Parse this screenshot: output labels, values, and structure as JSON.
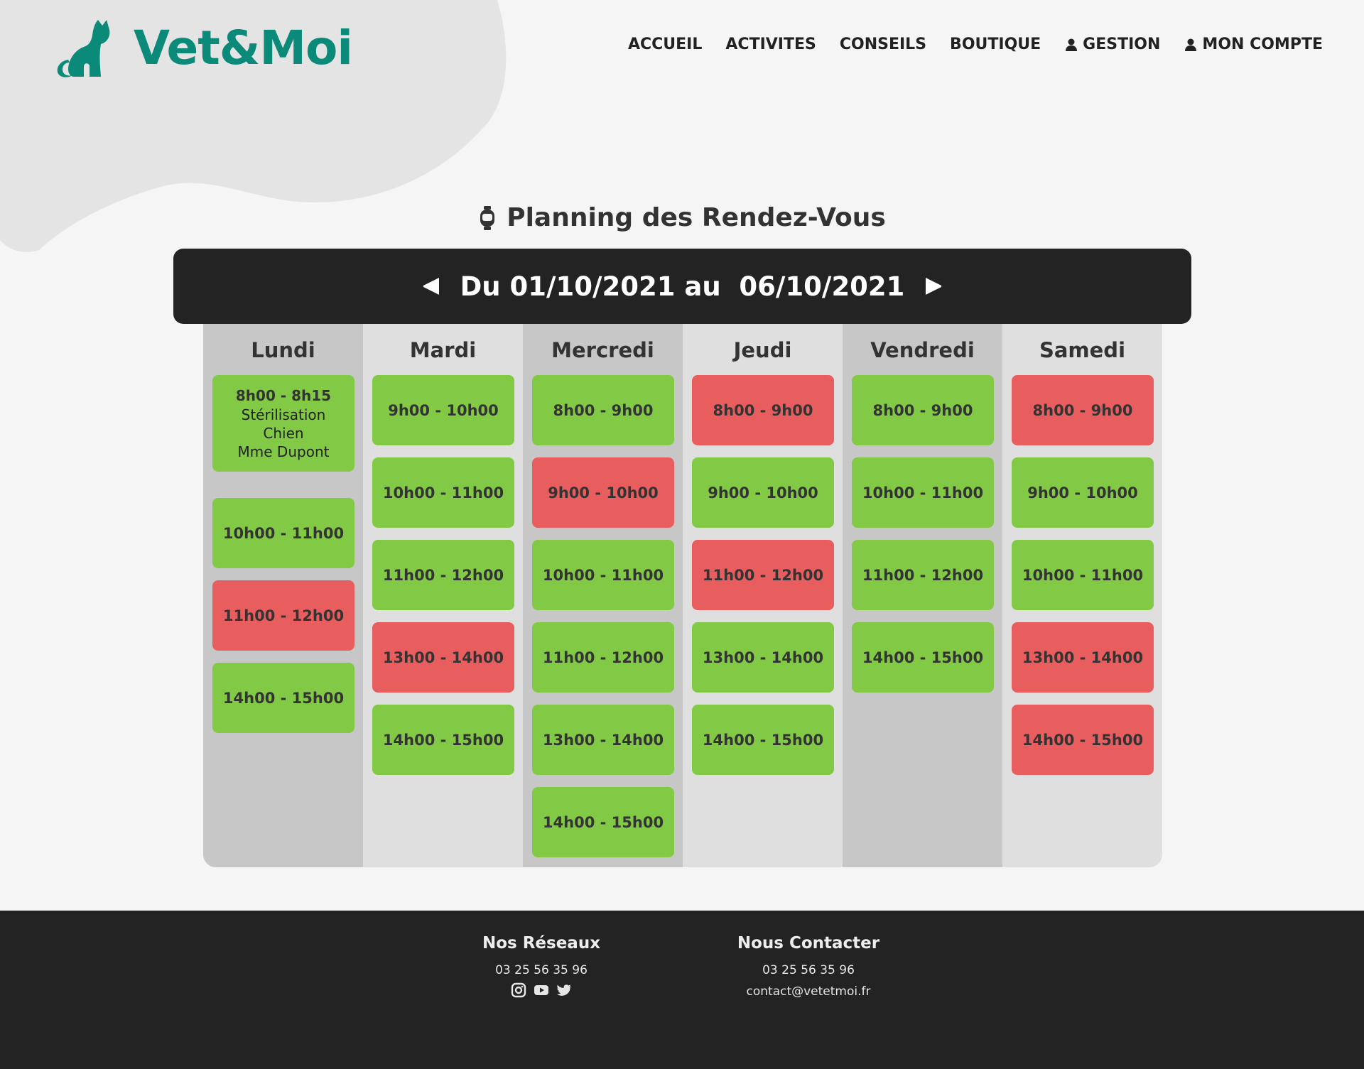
{
  "brand": {
    "name": "Vet&Moi",
    "color": "#0b8a7a"
  },
  "nav": {
    "items": [
      {
        "label": "ACCUEIL",
        "icon": ""
      },
      {
        "label": "ACTIVITES",
        "icon": ""
      },
      {
        "label": "CONSEILS",
        "icon": ""
      },
      {
        "label": "BOUTIQUE",
        "icon": ""
      },
      {
        "label": "GESTION",
        "icon": "user-icon"
      },
      {
        "label": "MON COMPTE",
        "icon": "user-icon"
      }
    ]
  },
  "page": {
    "title": "Planning des Rendez-Vous",
    "title_icon": "stopwatch-icon"
  },
  "week": {
    "label": "Du 01/10/2021 au  06/10/2021",
    "prev_icon": "caret-left-icon",
    "next_icon": "caret-right-icon"
  },
  "colors": {
    "free": "#82c946",
    "busy": "#e85d5d"
  },
  "calendar": {
    "days": [
      {
        "name": "Lundi",
        "slots": [
          {
            "time": "8h00 - 8h15",
            "status": "free",
            "details": [
              "Stérilisation",
              "Chien",
              "Mme Dupont"
            ]
          },
          {
            "time": "10h00 - 11h00",
            "status": "free"
          },
          {
            "time": "11h00 - 12h00",
            "status": "busy"
          },
          {
            "time": "14h00 - 15h00",
            "status": "free"
          }
        ]
      },
      {
        "name": "Mardi",
        "slots": [
          {
            "time": "9h00 - 10h00",
            "status": "free"
          },
          {
            "time": "10h00 - 11h00",
            "status": "free"
          },
          {
            "time": "11h00 - 12h00",
            "status": "free"
          },
          {
            "time": "13h00 - 14h00",
            "status": "busy"
          },
          {
            "time": "14h00 - 15h00",
            "status": "free"
          }
        ]
      },
      {
        "name": "Mercredi",
        "slots": [
          {
            "time": "8h00 - 9h00",
            "status": "free"
          },
          {
            "time": "9h00 - 10h00",
            "status": "busy"
          },
          {
            "time": "10h00 - 11h00",
            "status": "free"
          },
          {
            "time": "11h00 - 12h00",
            "status": "free"
          },
          {
            "time": "13h00 - 14h00",
            "status": "free"
          },
          {
            "time": "14h00 - 15h00",
            "status": "free"
          }
        ]
      },
      {
        "name": "Jeudi",
        "slots": [
          {
            "time": "8h00 - 9h00",
            "status": "busy"
          },
          {
            "time": "9h00 - 10h00",
            "status": "free"
          },
          {
            "time": "11h00 - 12h00",
            "status": "busy"
          },
          {
            "time": "13h00 - 14h00",
            "status": "free"
          },
          {
            "time": "14h00 - 15h00",
            "status": "free"
          }
        ]
      },
      {
        "name": "Vendredi",
        "slots": [
          {
            "time": "8h00 - 9h00",
            "status": "free"
          },
          {
            "time": "10h00 - 11h00",
            "status": "free"
          },
          {
            "time": "11h00 - 12h00",
            "status": "free"
          },
          {
            "time": "14h00 - 15h00",
            "status": "free"
          }
        ]
      },
      {
        "name": "Samedi",
        "slots": [
          {
            "time": "8h00 - 9h00",
            "status": "busy"
          },
          {
            "time": "9h00 - 10h00",
            "status": "free"
          },
          {
            "time": "10h00 - 11h00",
            "status": "free"
          },
          {
            "time": "13h00 - 14h00",
            "status": "busy"
          },
          {
            "time": "14h00 - 15h00",
            "status": "busy"
          }
        ]
      }
    ]
  },
  "footer": {
    "networks": {
      "title": "Nos Réseaux",
      "phone": "03 25 56 35 96",
      "icons": [
        "instagram-icon",
        "youtube-icon",
        "twitter-icon"
      ]
    },
    "contact": {
      "title": "Nous Contacter",
      "phone": "03 25 56 35 96",
      "email": "contact@vetetmoi.fr"
    }
  }
}
